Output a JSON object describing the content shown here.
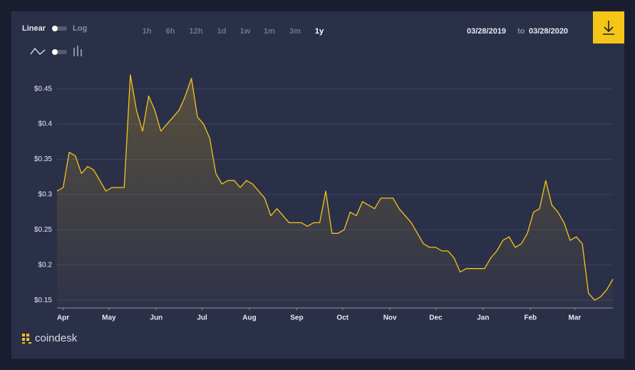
{
  "chart_data": {
    "type": "line",
    "values": [
      0.305,
      0.31,
      0.36,
      0.355,
      0.33,
      0.34,
      0.335,
      0.32,
      0.305,
      0.31,
      0.31,
      0.31,
      0.47,
      0.42,
      0.39,
      0.44,
      0.42,
      0.39,
      0.4,
      0.41,
      0.42,
      0.44,
      0.465,
      0.41,
      0.4,
      0.38,
      0.33,
      0.315,
      0.32,
      0.32,
      0.31,
      0.32,
      0.315,
      0.305,
      0.295,
      0.27,
      0.28,
      0.27,
      0.26,
      0.26,
      0.26,
      0.255,
      0.26,
      0.26,
      0.305,
      0.245,
      0.245,
      0.25,
      0.275,
      0.27,
      0.29,
      0.285,
      0.28,
      0.295,
      0.295,
      0.295,
      0.28,
      0.27,
      0.26,
      0.245,
      0.23,
      0.225,
      0.225,
      0.22,
      0.22,
      0.21,
      0.19,
      0.195,
      0.195,
      0.195,
      0.195,
      0.21,
      0.22,
      0.235,
      0.24,
      0.225,
      0.23,
      0.245,
      0.275,
      0.28,
      0.32,
      0.285,
      0.275,
      0.26,
      0.235,
      0.24,
      0.23,
      0.16,
      0.15,
      0.155,
      0.165,
      0.18
    ],
    "color": "#f5c518",
    "xlim": [
      0,
      91
    ],
    "xticks": [
      {
        "value": 1,
        "label": "Apr"
      },
      {
        "value": 8.5,
        "label": "May"
      },
      {
        "value": 16.25,
        "label": "Jun"
      },
      {
        "value": 23.75,
        "label": "Jul"
      },
      {
        "value": 31.5,
        "label": "Aug"
      },
      {
        "value": 39.25,
        "label": "Sep"
      },
      {
        "value": 46.75,
        "label": "Oct"
      },
      {
        "value": 54.5,
        "label": "Nov"
      },
      {
        "value": 62,
        "label": "Dec"
      },
      {
        "value": 69.75,
        "label": "Jan"
      },
      {
        "value": 77.5,
        "label": "Feb"
      },
      {
        "value": 84.75,
        "label": "Mar"
      }
    ],
    "ylim": [
      0.139,
      0.475
    ],
    "yticks": [
      {
        "value": 0.15,
        "label": "$0.15"
      },
      {
        "value": 0.2,
        "label": "$0.2"
      },
      {
        "value": 0.25,
        "label": "$0.25"
      },
      {
        "value": 0.3,
        "label": "$0.3"
      },
      {
        "value": 0.35,
        "label": "$0.35"
      },
      {
        "value": 0.4,
        "label": "$0.4"
      },
      {
        "value": 0.45,
        "label": "$0.45"
      }
    ],
    "grid": true
  },
  "controls": {
    "scale": [
      "Linear",
      "Log"
    ],
    "ranges": [
      "1h",
      "6h",
      "12h",
      "1d",
      "1w",
      "1m",
      "3m",
      "1y"
    ],
    "active_range": 7,
    "date_from": "03/28/2019",
    "date_sep": "to",
    "date_to": "03/28/2020",
    "brand": "coindesk"
  }
}
